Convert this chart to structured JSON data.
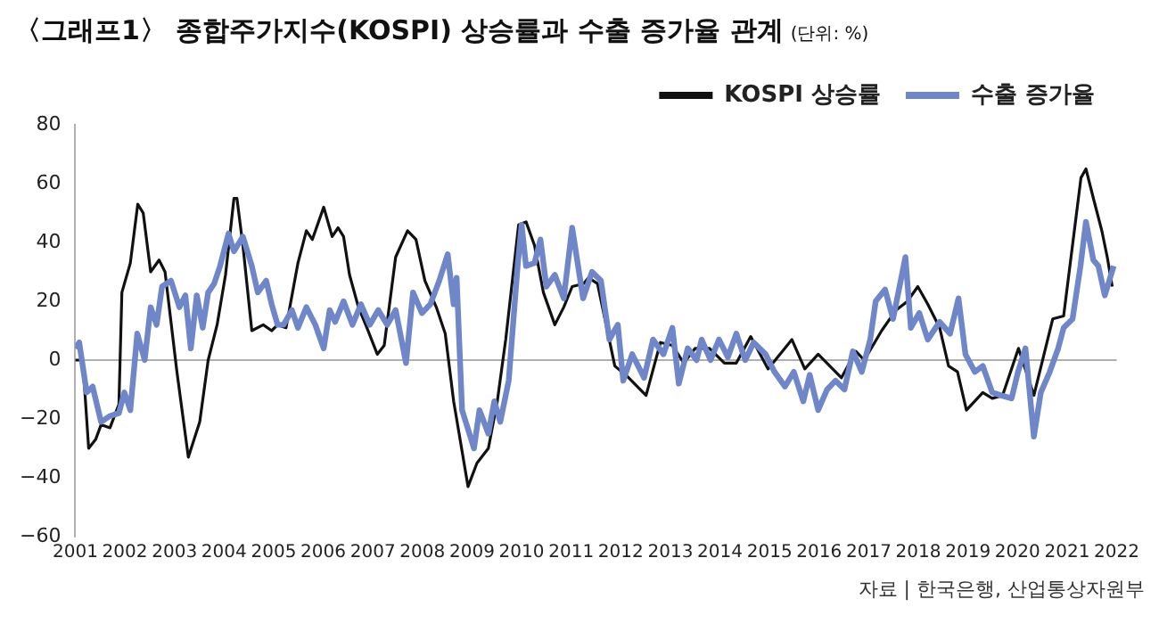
{
  "chart_data": {
    "type": "line",
    "title": "〈그래프1〉 종합주가지수(KOSPI) 상승률과 수출 증가율 관계",
    "subtitle": "(단위: %)",
    "annotations": [
      "자료 | 한국은행, 산업통상자원부"
    ],
    "xlim": [
      2001,
      2022
    ],
    "xticks": [
      2001,
      2002,
      2003,
      2004,
      2005,
      2006,
      2007,
      2008,
      2009,
      2010,
      2011,
      2012,
      2013,
      2014,
      2015,
      2016,
      2017,
      2018,
      2019,
      2020,
      2021,
      2022
    ],
    "ylim": [
      -60,
      80
    ],
    "yticks": [
      -60,
      -40,
      -20,
      0,
      20,
      40,
      60,
      80
    ],
    "grid": false,
    "legend": "top right",
    "marker": "none",
    "ref_lines": [
      {
        "axis": "y",
        "value": 0,
        "color": "#b0b0b0"
      }
    ],
    "series": [
      {
        "name": "KOSPI 상승률",
        "color": "#111111",
        "x": [
          2001.0,
          2001.15,
          2001.27,
          2001.41,
          2001.52,
          2001.7,
          2001.88,
          2001.94,
          2002.11,
          2002.26,
          2002.37,
          2002.52,
          2002.69,
          2002.81,
          2003.05,
          2003.28,
          2003.51,
          2003.68,
          2003.86,
          2004.03,
          2004.2,
          2004.26,
          2004.38,
          2004.56,
          2004.79,
          2004.96,
          2005.08,
          2005.25,
          2005.49,
          2005.66,
          2005.78,
          2006.01,
          2006.18,
          2006.3,
          2006.41,
          2006.53,
          2006.71,
          2006.88,
          2007.09,
          2007.23,
          2007.46,
          2007.7,
          2007.87,
          2008.05,
          2008.28,
          2008.46,
          2008.63,
          2008.92,
          2009.1,
          2009.33,
          2009.51,
          2009.68,
          2009.94,
          2010.09,
          2010.26,
          2010.44,
          2010.67,
          2010.85,
          2011.02,
          2011.25,
          2011.35,
          2011.53,
          2011.88,
          2012.16,
          2012.51,
          2012.8,
          2013.04,
          2013.27,
          2013.5,
          2013.79,
          2014.09,
          2014.33,
          2014.62,
          2014.97,
          2015.45,
          2015.71,
          2015.98,
          2016.45,
          2016.74,
          2016.91,
          2017.26,
          2017.55,
          2017.78,
          2017.99,
          2018.19,
          2018.43,
          2018.61,
          2018.79,
          2018.97,
          2019.3,
          2019.49,
          2019.7,
          2020.02,
          2020.33,
          2020.71,
          2020.93,
          2021.28,
          2021.38,
          2021.53,
          2021.7,
          2021.81,
          2021.91
        ],
        "values": [
          0,
          0,
          -30,
          -27,
          -22,
          -23,
          -15,
          23,
          33,
          53,
          50,
          30,
          34,
          30,
          -4,
          -33,
          -21,
          0,
          12,
          29,
          55,
          55,
          39,
          10,
          12,
          10,
          12,
          11,
          33,
          44,
          41,
          52,
          42,
          45,
          42,
          29,
          18,
          11,
          2,
          5,
          35,
          44,
          41,
          27,
          18,
          9,
          -14,
          -43,
          -35,
          -30,
          -14,
          7,
          46,
          47,
          39,
          23,
          12,
          18,
          25,
          26,
          28,
          26,
          -2,
          -6,
          -12,
          6,
          5,
          -1,
          4,
          4,
          -1,
          -1,
          8,
          -3,
          7,
          -3,
          2,
          -6,
          3,
          0,
          10,
          17,
          20,
          25,
          19,
          11,
          -2,
          -4,
          -17,
          -11,
          -13,
          -12,
          4,
          -12,
          14,
          15,
          62,
          65,
          55,
          44,
          35,
          25
        ]
      },
      {
        "name": "수출 증가율",
        "color": "#6f86c9",
        "x": [
          2001.0,
          2001.08,
          2001.23,
          2001.35,
          2001.52,
          2001.7,
          2001.88,
          2001.99,
          2002.11,
          2002.25,
          2002.4,
          2002.52,
          2002.64,
          2002.75,
          2002.93,
          2003.1,
          2003.22,
          2003.33,
          2003.45,
          2003.57,
          2003.68,
          2003.8,
          2003.92,
          2004.09,
          2004.2,
          2004.38,
          2004.56,
          2004.68,
          2004.85,
          2004.96,
          2005.08,
          2005.2,
          2005.37,
          2005.49,
          2005.66,
          2005.84,
          2006.01,
          2006.13,
          2006.24,
          2006.41,
          2006.59,
          2006.76,
          2006.94,
          2007.11,
          2007.29,
          2007.46,
          2007.67,
          2007.81,
          2007.99,
          2008.16,
          2008.34,
          2008.51,
          2008.63,
          2008.69,
          2008.8,
          2009.04,
          2009.15,
          2009.33,
          2009.45,
          2009.57,
          2009.74,
          2009.92,
          2010.0,
          2010.09,
          2010.26,
          2010.38,
          2010.5,
          2010.67,
          2010.85,
          2011.02,
          2011.24,
          2011.42,
          2011.6,
          2011.77,
          2011.94,
          2012.05,
          2012.23,
          2012.47,
          2012.65,
          2012.86,
          2013.04,
          2013.17,
          2013.35,
          2013.53,
          2013.63,
          2013.81,
          2013.98,
          2014.16,
          2014.33,
          2014.51,
          2014.68,
          2014.92,
          2015.1,
          2015.31,
          2015.49,
          2015.68,
          2015.81,
          2015.98,
          2016.16,
          2016.33,
          2016.51,
          2016.68,
          2016.86,
          2017.03,
          2017.14,
          2017.33,
          2017.49,
          2017.74,
          2017.85,
          2018.02,
          2018.19,
          2018.43,
          2018.64,
          2018.81,
          2018.95,
          2019.14,
          2019.3,
          2019.49,
          2019.67,
          2019.88,
          2020.01,
          2020.16,
          2020.33,
          2020.47,
          2020.65,
          2020.82,
          2020.93,
          2021.11,
          2021.27,
          2021.38,
          2021.53,
          2021.63,
          2021.76,
          2021.94
        ],
        "values": [
          4,
          6,
          -11,
          -9,
          -21,
          -19,
          -18,
          -11,
          -17,
          9,
          0,
          18,
          12,
          25,
          27,
          18,
          22,
          4,
          22,
          11,
          23,
          26,
          32,
          43,
          37,
          42,
          32,
          23,
          27,
          19,
          12,
          12,
          17,
          11,
          18,
          12,
          4,
          17,
          13,
          20,
          12,
          19,
          12,
          17,
          12,
          17,
          -1,
          23,
          16,
          19,
          27,
          36,
          19,
          28,
          -17,
          -30,
          -17,
          -25,
          -14,
          -21,
          -7,
          32,
          46,
          32,
          33,
          41,
          25,
          29,
          21,
          45,
          21,
          30,
          27,
          7,
          12,
          -7,
          2,
          -6,
          7,
          2,
          11,
          -8,
          4,
          0,
          7,
          0,
          7,
          1,
          9,
          0,
          6,
          2,
          -4,
          -9,
          -4,
          -14,
          -5,
          -17,
          -10,
          -7,
          -10,
          3,
          -4,
          7,
          20,
          24,
          14,
          35,
          11,
          16,
          7,
          13,
          9,
          21,
          2,
          -4,
          -2,
          -11,
          -12,
          -13,
          -4,
          4,
          -26,
          -11,
          -4,
          4,
          11,
          14,
          32,
          47,
          34,
          32,
          22,
          32
        ]
      }
    ]
  }
}
